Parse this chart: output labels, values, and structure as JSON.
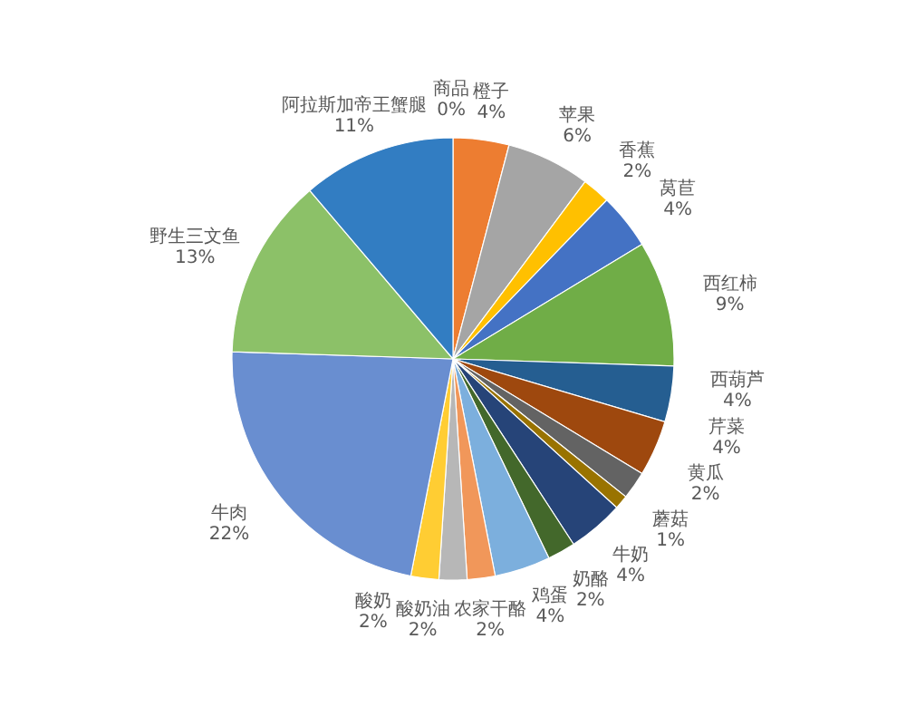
{
  "chart_data": {
    "type": "pie",
    "categories": [
      "商品",
      "橙子",
      "苹果",
      "香蕉",
      "莴苣",
      "西红柿",
      "西葫芦",
      "芹菜",
      "黄瓜",
      "蘑菇",
      "牛奶",
      "奶酪",
      "鸡蛋",
      "农家干酪",
      "酸奶油",
      "酸奶",
      "牛肉",
      "野生三文鱼",
      "阿拉斯加帝王蟹腿"
    ],
    "values": [
      0,
      4,
      6,
      2,
      4,
      9,
      4,
      4,
      2,
      1,
      4,
      2,
      4,
      2,
      2,
      2,
      22,
      13,
      11
    ],
    "colors": [
      "#5b9bd5",
      "#ed7d31",
      "#a5a5a5",
      "#ffc000",
      "#4472c4",
      "#70ad47",
      "#255e91",
      "#9e480e",
      "#636363",
      "#997300",
      "#264478",
      "#43682b",
      "#7cafdd",
      "#f1975a",
      "#b7b7b7",
      "#ffcd33",
      "#698ed0",
      "#8cc168",
      "#327dc2"
    ],
    "value_labels": [
      "0%",
      "4%",
      "6%",
      "2%",
      "4%",
      "9%",
      "4%",
      "4%",
      "2%",
      "1%",
      "4%",
      "2%",
      "4%",
      "2%",
      "2%",
      "2%",
      "22%",
      "13%",
      "11%"
    ]
  }
}
